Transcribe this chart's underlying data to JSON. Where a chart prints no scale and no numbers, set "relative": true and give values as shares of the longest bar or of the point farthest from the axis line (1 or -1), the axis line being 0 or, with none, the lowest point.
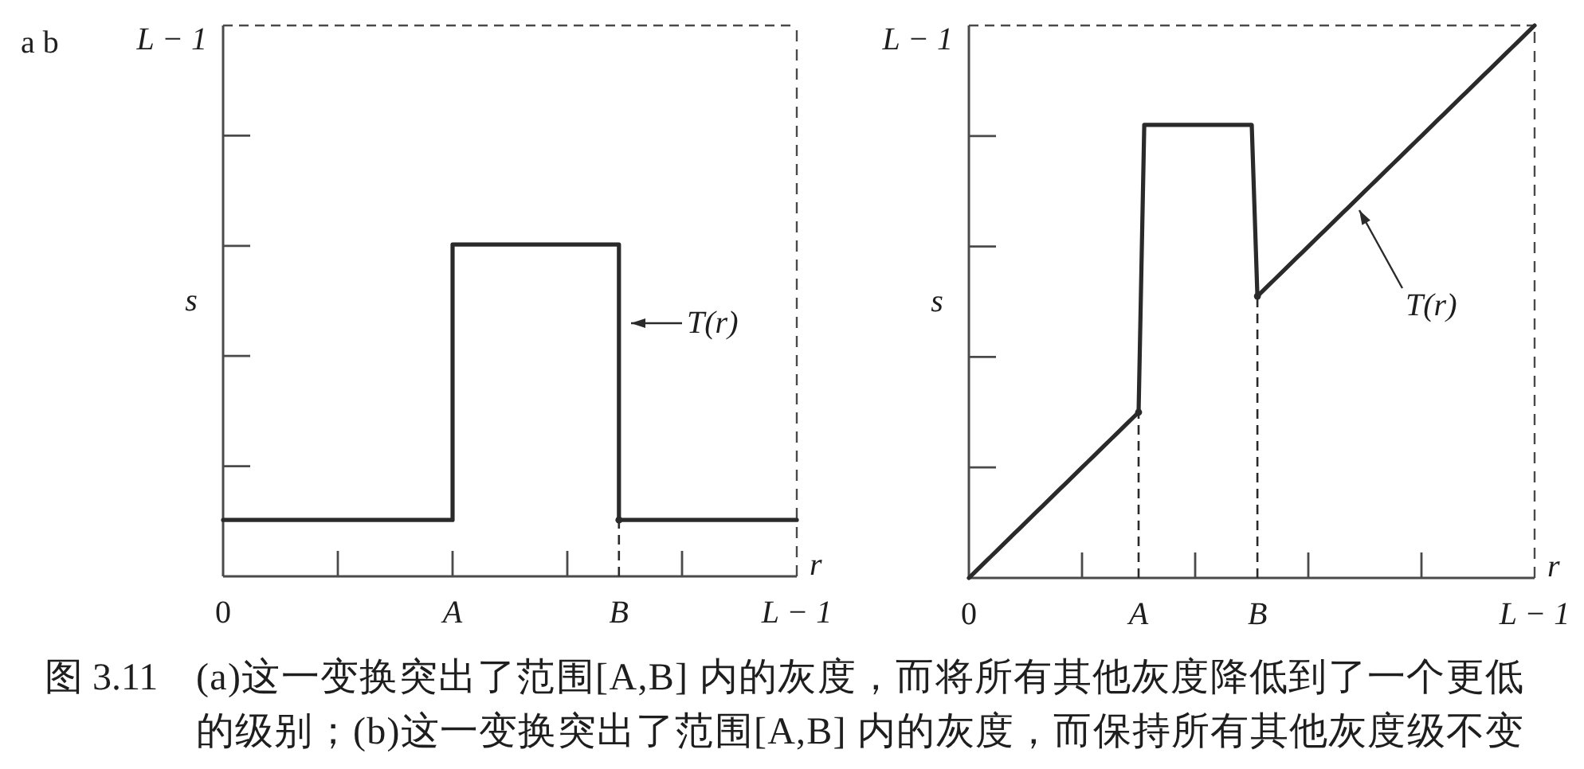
{
  "chart_data": [
    {
      "type": "step",
      "relative": true,
      "xlabel": "r",
      "ylabel": "s",
      "categories": [
        "0",
        null,
        null,
        null,
        null,
        null,
        null,
        null,
        null,
        null,
        null,
        null,
        null,
        null,
        null,
        null,
        null,
        null,
        null,
        null,
        null,
        null,
        null,
        null,
        null,
        null,
        null,
        null,
        null,
        null,
        null,
        null,
        null,
        null,
        null,
        null,
        null,
        null,
        null,
        null,
        "A",
        null,
        null,
        null,
        null,
        null,
        null,
        null,
        null,
        null,
        null,
        null,
        null,
        null,
        null,
        null,
        null,
        null,
        null,
        null,
        null,
        null,
        null,
        null,
        null,
        null,
        null,
        null,
        null,
        "B",
        null,
        null,
        null,
        null,
        null,
        null,
        null,
        null,
        null,
        null,
        null,
        null,
        null,
        null,
        null,
        null,
        null,
        null,
        null,
        null,
        null,
        null,
        null,
        null,
        null,
        null,
        null,
        null,
        null,
        null,
        "L − 1"
      ],
      "series": [
        {
          "color": "#2a2a2a",
          "values": [
            0.17,
            0.17,
            0.17,
            0.17,
            0.17,
            0.17,
            0.17,
            0.17,
            0.17,
            0.17,
            0.17,
            0.17,
            0.17,
            0.17,
            0.17,
            0.17,
            0.17,
            0.17,
            0.17,
            0.17,
            0.17,
            0.17,
            0.17,
            0.17,
            0.17,
            0.17,
            0.17,
            0.17,
            0.17,
            0.17,
            0.17,
            0.17,
            0.17,
            0.17,
            0.17,
            0.17,
            0.17,
            0.17,
            0.17,
            0.17,
            1,
            1,
            1,
            1,
            1,
            1,
            1,
            1,
            1,
            1,
            1,
            1,
            1,
            1,
            1,
            1,
            1,
            1,
            1,
            1,
            1,
            1,
            1,
            1,
            1,
            1,
            1,
            1,
            1,
            0.17,
            0.17,
            0.17,
            0.17,
            0.17,
            0.17,
            0.17,
            0.17,
            0.17,
            0.17,
            0.17,
            0.17,
            0.17,
            0.17,
            0.17,
            0.17,
            0.17,
            0.17,
            0.17,
            0.17,
            0.17,
            0.17,
            0.17,
            0.17,
            0.17,
            0.17,
            0.17,
            0.17,
            0.17,
            0.17,
            0.17,
            0.17
          ]
        },
        {
          "type": "lollipop",
          "color": "#2a2a2a",
          "line_style": "dashed",
          "marker": "circle",
          "values": [
            null,
            null,
            null,
            null,
            null,
            null,
            null,
            null,
            null,
            null,
            null,
            null,
            null,
            null,
            null,
            null,
            null,
            null,
            null,
            null,
            null,
            null,
            null,
            null,
            null,
            null,
            null,
            null,
            null,
            null,
            null,
            null,
            null,
            null,
            null,
            null,
            null,
            null,
            null,
            null,
            null,
            null,
            null,
            null,
            null,
            null,
            null,
            null,
            null,
            null,
            null,
            null,
            null,
            null,
            null,
            null,
            null,
            null,
            null,
            null,
            null,
            null,
            null,
            null,
            null,
            null,
            null,
            null,
            null,
            0.17,
            null,
            null,
            null,
            null,
            null,
            null,
            null,
            null,
            null,
            null,
            null,
            null,
            null,
            null,
            null,
            null,
            null,
            null,
            null,
            null,
            null,
            null,
            null,
            null,
            null,
            null,
            null,
            null,
            null,
            null,
            null
          ]
        }
      ],
      "ref_lines": [
        {
          "axis": "y",
          "value": 1.66,
          "label": "L − 1",
          "line_style": "dashed"
        }
      ],
      "annotations": [
        "a b",
        "T(r)"
      ]
    },
    {
      "type": "line",
      "relative": true,
      "xlabel": "r",
      "ylabel": "s",
      "categories": [
        "0",
        null,
        null,
        null,
        null,
        null,
        null,
        null,
        null,
        null,
        null,
        null,
        null,
        null,
        null,
        null,
        null,
        null,
        null,
        null,
        null,
        null,
        null,
        null,
        null,
        null,
        null,
        null,
        null,
        null,
        "A",
        null,
        null,
        null,
        null,
        null,
        null,
        null,
        null,
        null,
        null,
        null,
        null,
        null,
        null,
        null,
        null,
        null,
        null,
        null,
        null,
        "B",
        null,
        null,
        null,
        null,
        null,
        null,
        null,
        null,
        null,
        null,
        null,
        null,
        null,
        null,
        null,
        null,
        null,
        null,
        null,
        null,
        null,
        null,
        null,
        null,
        null,
        null,
        null,
        null,
        null,
        null,
        null,
        null,
        null,
        null,
        null,
        null,
        null,
        null,
        null,
        null,
        null,
        null,
        null,
        null,
        null,
        null,
        null,
        null,
        "L − 1"
      ],
      "series": [
        {
          "color": "#2a2a2a",
          "values": [
            0,
            0.01,
            0.02,
            0.03,
            0.04,
            0.05,
            0.06,
            0.07,
            0.08,
            0.09,
            0.1,
            0.11,
            0.12,
            0.13,
            0.14,
            0.15,
            0.16,
            0.17,
            0.18,
            0.19,
            0.2,
            0.21,
            0.22,
            0.23,
            0.24,
            0.25,
            0.26,
            0.27,
            0.28,
            0.29,
            0.3,
            0.82,
            0.82,
            0.82,
            0.82,
            0.82,
            0.82,
            0.82,
            0.82,
            0.82,
            0.82,
            0.82,
            0.82,
            0.82,
            0.82,
            0.82,
            0.82,
            0.82,
            0.82,
            0.82,
            0.82,
            0.51,
            0.52,
            0.53,
            0.54,
            0.55,
            0.56,
            0.57,
            0.58,
            0.59,
            0.6,
            0.61,
            0.62,
            0.63,
            0.64,
            0.65,
            0.66,
            0.67,
            0.68,
            0.69,
            0.7,
            0.71,
            0.72,
            0.73,
            0.74,
            0.75,
            0.76,
            0.77,
            0.78,
            0.79,
            0.8,
            0.81,
            0.82,
            0.83,
            0.84,
            0.85,
            0.86,
            0.87,
            0.88,
            0.89,
            0.9,
            0.91,
            0.92,
            0.93,
            0.94,
            0.95,
            0.96,
            0.97,
            0.98,
            0.99,
            1
          ]
        },
        {
          "type": "lollipop",
          "color": "#2a2a2a",
          "line_style": "dashed",
          "marker": "circle",
          "values": [
            null,
            null,
            null,
            null,
            null,
            null,
            null,
            null,
            null,
            null,
            null,
            null,
            null,
            null,
            null,
            null,
            null,
            null,
            null,
            null,
            null,
            null,
            null,
            null,
            null,
            null,
            null,
            null,
            null,
            null,
            0.3,
            null,
            null,
            null,
            null,
            null,
            null,
            null,
            null,
            null,
            null,
            null,
            null,
            null,
            null,
            null,
            null,
            null,
            null,
            null,
            null,
            0.51,
            null,
            null,
            null,
            null,
            null,
            null,
            null,
            null,
            null,
            null,
            null,
            null,
            null,
            null,
            null,
            null,
            null,
            null,
            null,
            null,
            null,
            null,
            null,
            null,
            null,
            null,
            null,
            null,
            null,
            null,
            null,
            null,
            null,
            null,
            null,
            null,
            null,
            null,
            null,
            null,
            null,
            null,
            null,
            null,
            null,
            null,
            null,
            null,
            null
          ]
        }
      ],
      "ref_lines": [
        {
          "axis": "y",
          "value": 1,
          "label": "L − 1",
          "line_style": "dashed"
        }
      ],
      "annotations": [
        "T(r)"
      ]
    },
    {
      "type": "other",
      "annotations": [
        "图 3.11",
        "(a)这一变换突出了范围[A,B] 内的灰度，而将所有其他灰度降低到了一个更低的级别；(b)这一变换突出了范围[A,B] 内的灰度，而保持所有其他灰度级不变"
      ]
    }
  ]
}
